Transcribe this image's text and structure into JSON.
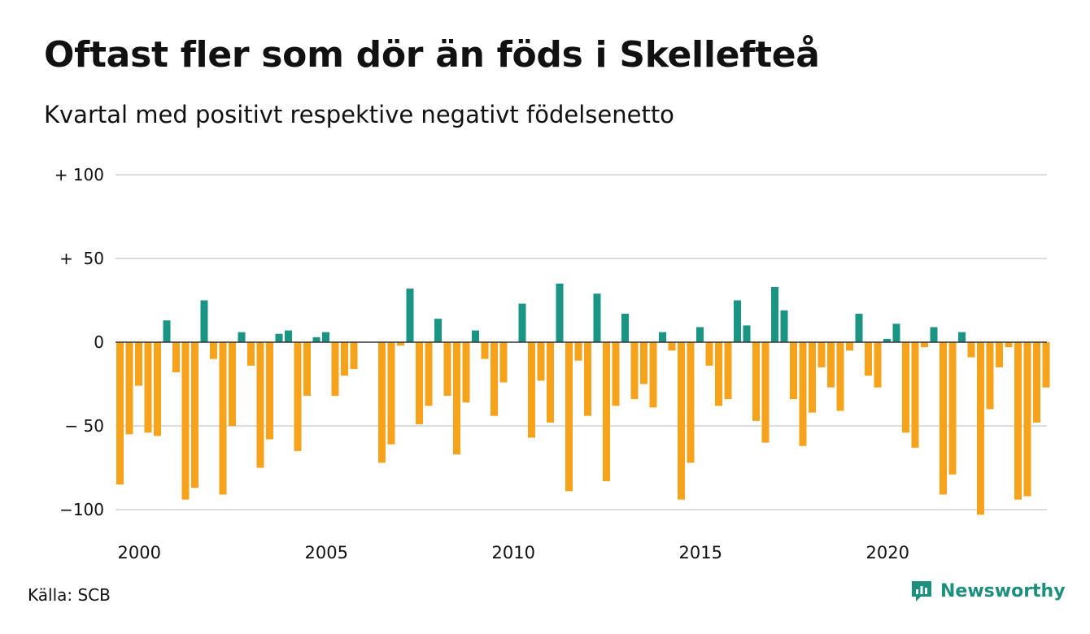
{
  "title": "Oftast fler som dör än föds i Skellefteå",
  "subtitle": "Kvartal med positivt respektive negativt födelsenetto",
  "source": "Källa: SCB",
  "brand": "Newsworthy",
  "colors": {
    "positive": "#1b9583",
    "negative": "#f7a21b",
    "grid": "#dddddd",
    "zero": "#333333",
    "text": "#111111",
    "brand": "#1d8f7e"
  },
  "chart_data": {
    "type": "bar",
    "title": "Oftast fler som dör än föds i Skellefteå",
    "subtitle": "Kvartal med positivt respektive negativt födelsenetto",
    "x_unit": "quarter",
    "x_start": "2000-Q1",
    "x_ticks": [
      "2000",
      "2005",
      "2010",
      "2015",
      "2020"
    ],
    "y_ticks": [
      {
        "value": 100,
        "label": "+ 100"
      },
      {
        "value": 50,
        "label": "+  50"
      },
      {
        "value": 0,
        "label": "0"
      },
      {
        "value": -50,
        "label": "− 50"
      },
      {
        "value": -100,
        "label": "−100"
      }
    ],
    "ylim": [
      -105,
      100
    ],
    "grid": true,
    "values": [
      -85,
      -55,
      -26,
      -54,
      -56,
      13,
      -18,
      -94,
      -87,
      25,
      -10,
      -91,
      -50,
      6,
      -14,
      -75,
      -58,
      5,
      7,
      -65,
      -32,
      3,
      6,
      -32,
      -20,
      -16,
      0,
      0,
      -72,
      -61,
      -2,
      32,
      -49,
      -38,
      14,
      -32,
      -67,
      -36,
      7,
      -10,
      -44,
      -24,
      0,
      23,
      -57,
      -23,
      -48,
      35,
      -89,
      -11,
      -44,
      29,
      -83,
      -38,
      17,
      -34,
      -25,
      -39,
      6,
      -5,
      -94,
      -72,
      9,
      -14,
      -38,
      -34,
      25,
      10,
      -47,
      -60,
      33,
      19,
      -34,
      -62,
      -42,
      -15,
      -27,
      -41,
      -5,
      17,
      -20,
      -27,
      2,
      11,
      -54,
      -63,
      -3,
      9,
      -91,
      -79,
      6,
      -9,
      -103,
      -40,
      -15,
      -3,
      -94,
      -92,
      -48,
      -27
    ]
  }
}
